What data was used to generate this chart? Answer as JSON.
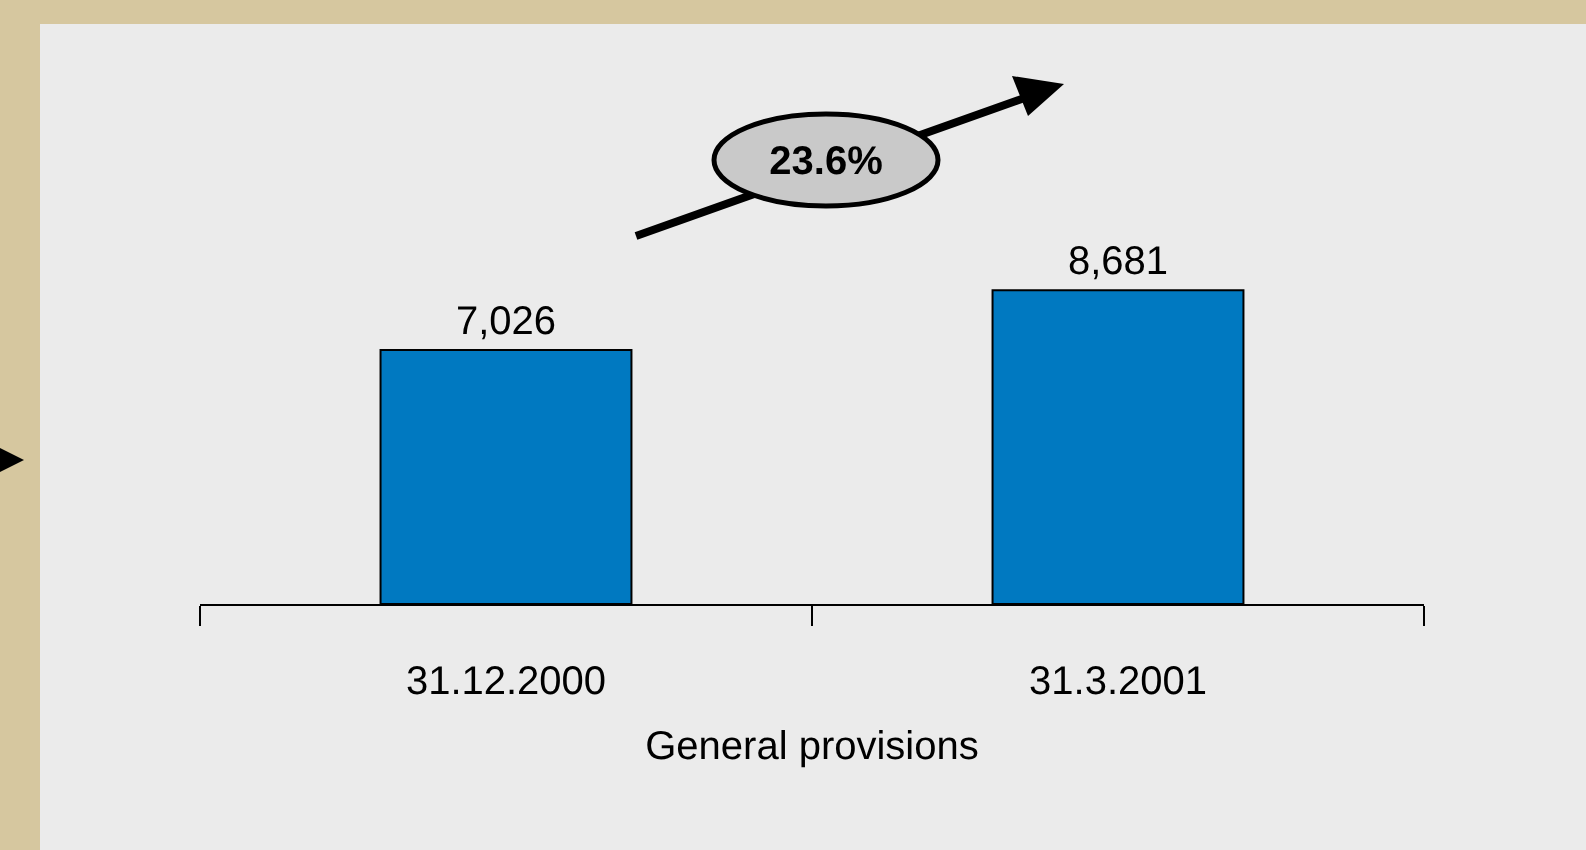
{
  "chart_data": {
    "type": "bar",
    "xlabel": "General provisions",
    "categories": [
      "31.12.2000",
      "31.3.2001"
    ],
    "values": [
      7026,
      8681
    ],
    "color": "#0079c1",
    "value_labels": [
      "7,026",
      "8,681"
    ],
    "annotations": [
      "23.6%"
    ]
  }
}
